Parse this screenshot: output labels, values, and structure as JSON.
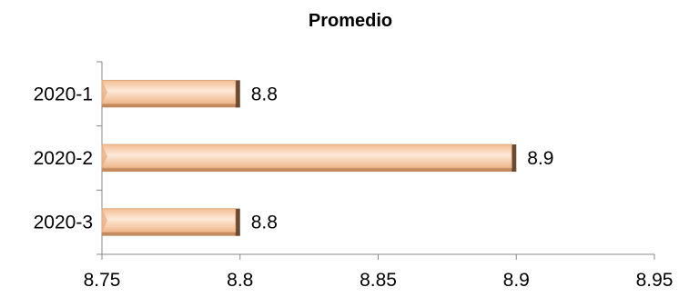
{
  "chart_data": {
    "type": "bar",
    "orientation": "horizontal",
    "title": "Promedio",
    "xlabel": "",
    "ylabel": "",
    "categories": [
      "2020-1",
      "2020-2",
      "2020-3"
    ],
    "values": [
      8.8,
      8.9,
      8.8
    ],
    "data_labels": [
      "8.8",
      "8.9",
      "8.8"
    ],
    "xlim": [
      8.75,
      8.95
    ],
    "x_ticks": [
      8.75,
      8.8,
      8.85,
      8.9,
      8.95
    ],
    "x_tick_labels": [
      "8.75",
      "8.8",
      "8.85",
      "8.9",
      "8.95"
    ],
    "grid": false,
    "legend": "none",
    "bar_color": "#f6caa4",
    "bar_highlight": "#fde9d8",
    "bar_shadow": "#6b4a32"
  }
}
